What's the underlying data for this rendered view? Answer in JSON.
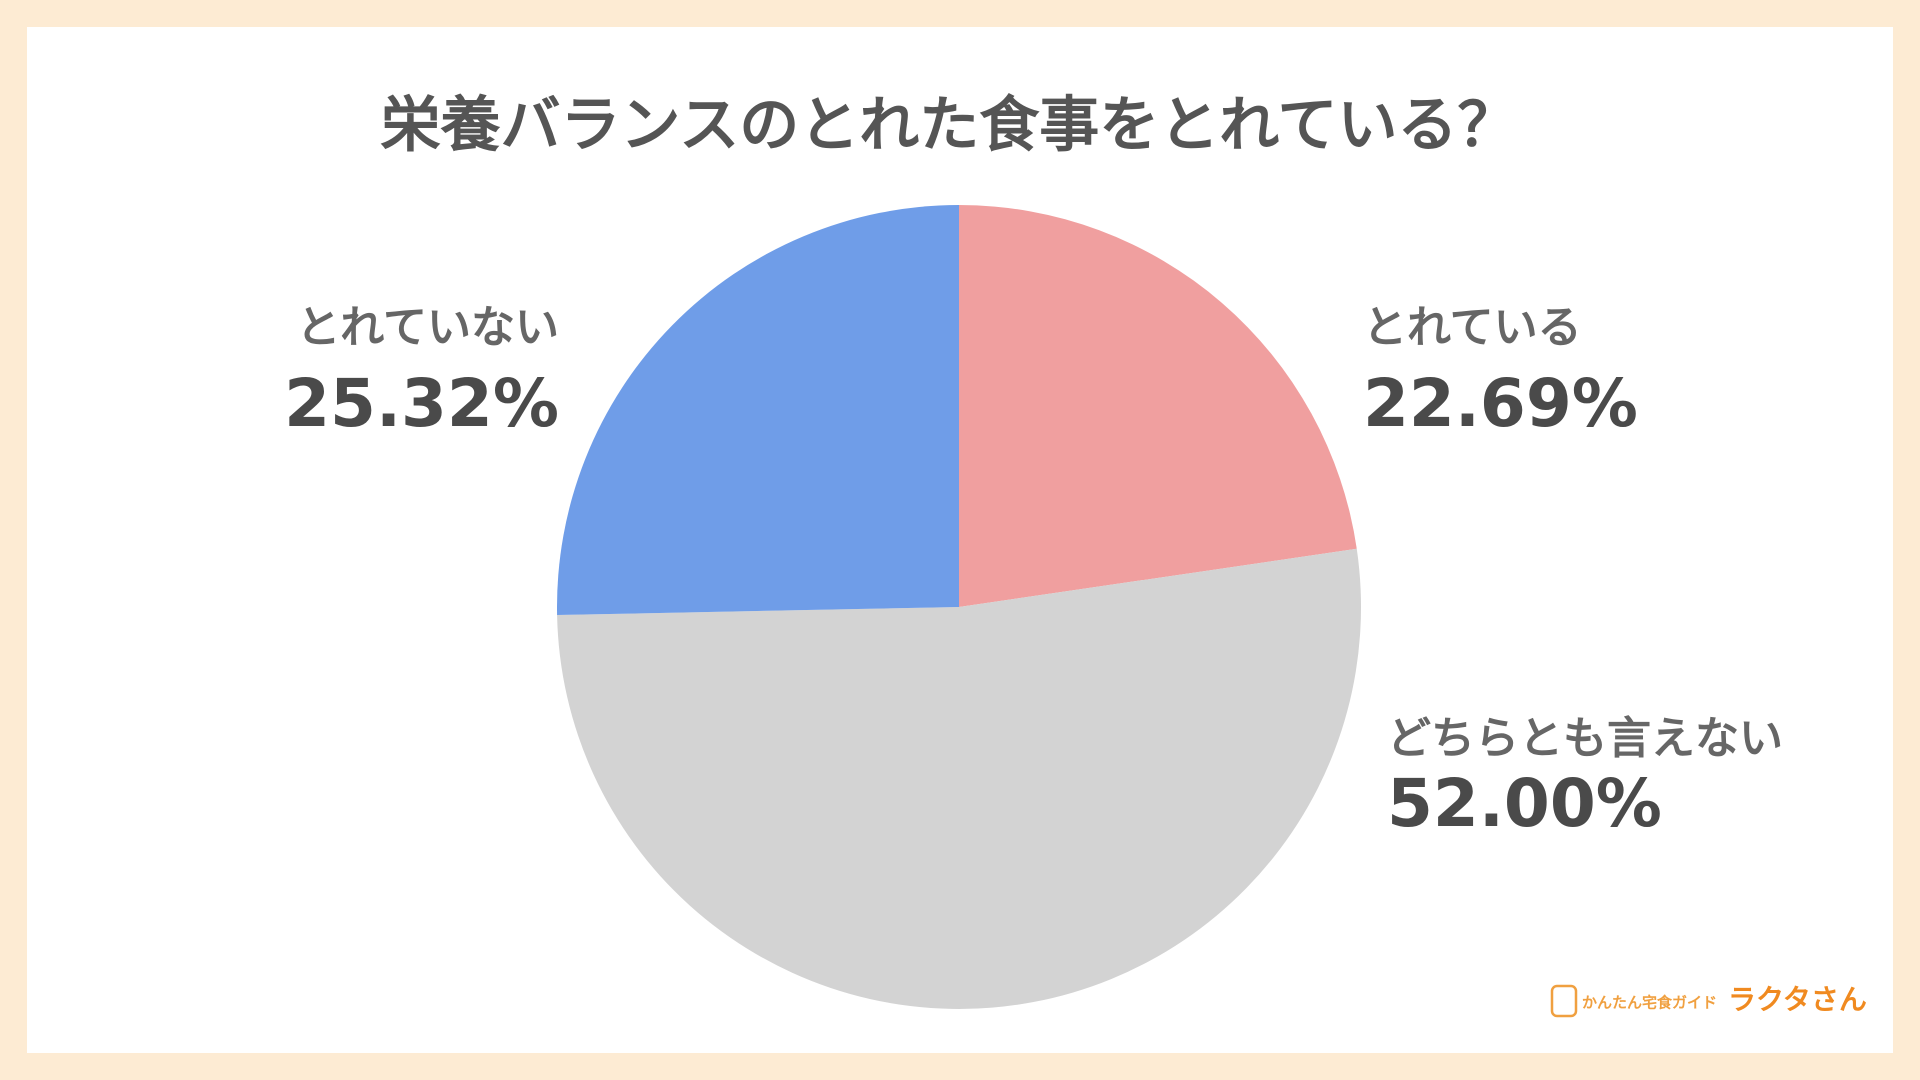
{
  "chart_data": {
    "type": "pie",
    "title": "栄養バランスのとれた食事をとれている？",
    "categories": [
      "とれている",
      "どちらとも言えない",
      "とれていない"
    ],
    "values": [
      22.69,
      52.0,
      25.32
    ],
    "value_labels": [
      "22.69%",
      "52.00%",
      "25.32%"
    ],
    "colors": [
      "#f09f9f",
      "#d3d3d3",
      "#6f9de8"
    ]
  },
  "logo": {
    "tagline": "かんたん宅食ガイド",
    "name": "ラクタさん"
  }
}
